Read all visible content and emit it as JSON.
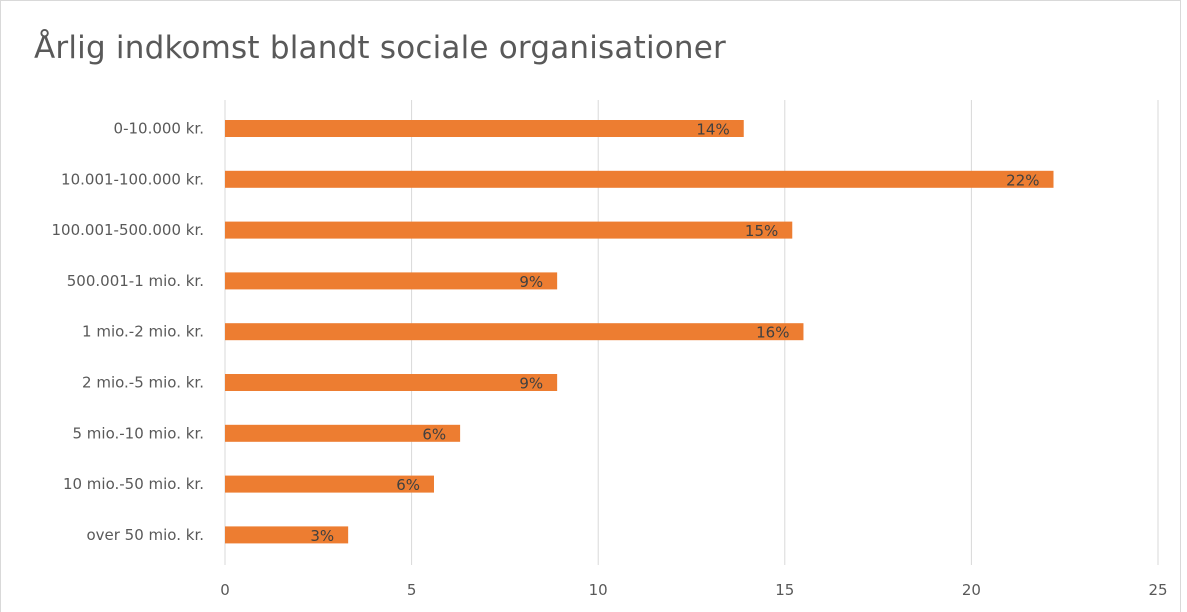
{
  "title": "Årlig indkomst blandt sociale organisationer",
  "colors": {
    "bar": "#ED7D31",
    "grid": "#d9d9d9",
    "text": "#595959"
  },
  "chart_data": {
    "type": "bar",
    "orientation": "horizontal",
    "title": "Årlig indkomst blandt sociale organisationer",
    "categories": [
      "0-10.000 kr.",
      "10.001-100.000 kr.",
      "100.001-500.000 kr.",
      "500.001-1 mio. kr.",
      "1 mio.-2 mio. kr.",
      "2 mio.-5 mio. kr.",
      "5 mio.-10 mio. kr.",
      "10 mio.-50 mio. kr.",
      "over 50 mio. kr."
    ],
    "values": [
      13.9,
      22.2,
      15.2,
      8.9,
      15.5,
      8.9,
      6.3,
      5.6,
      3.3
    ],
    "data_labels": [
      "14%",
      "22%",
      "15%",
      "9%",
      "16%",
      "9%",
      "6%",
      "6%",
      "3%"
    ],
    "xlim": [
      0,
      25
    ],
    "xticks": [
      0,
      5,
      10,
      15,
      20,
      25
    ],
    "grid": true,
    "legend": "none",
    "xlabel": "",
    "ylabel": ""
  }
}
